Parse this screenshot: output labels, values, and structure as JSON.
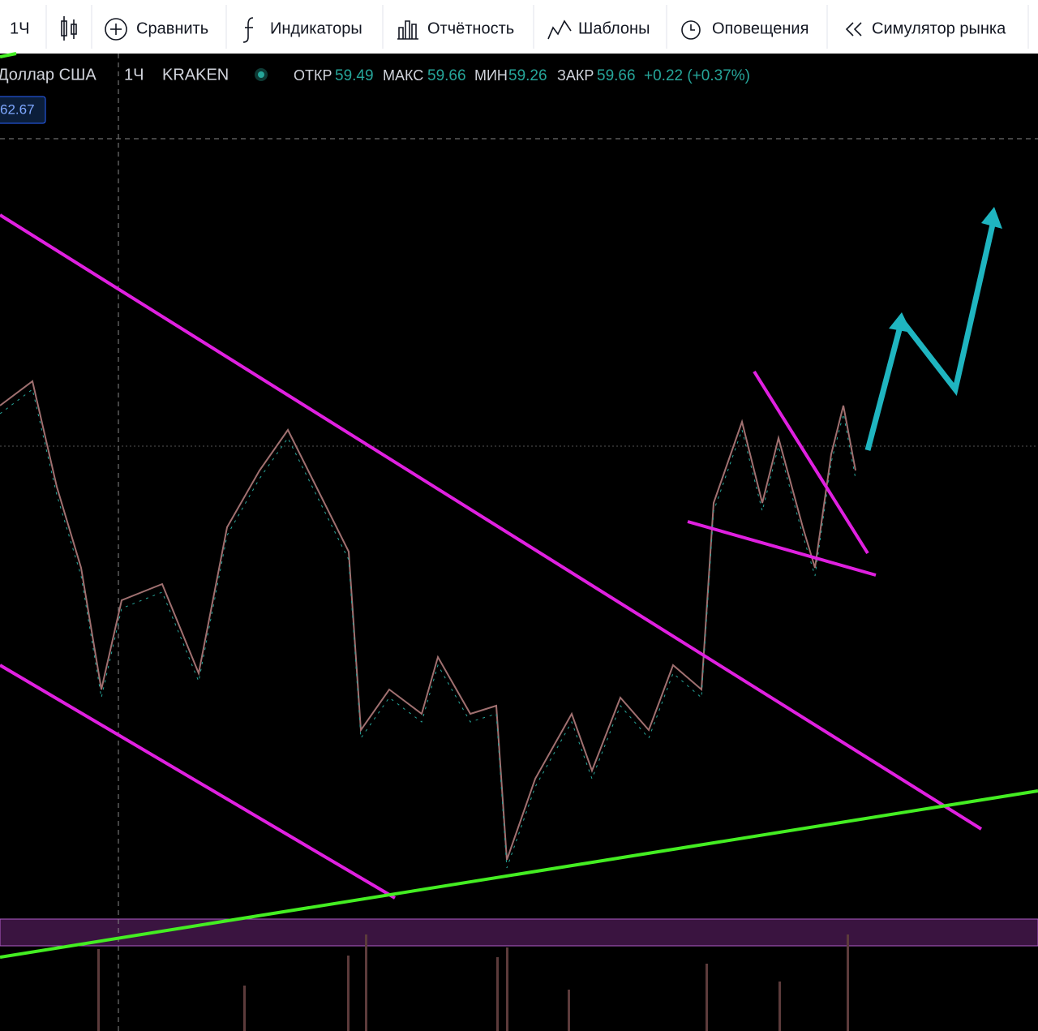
{
  "toolbar": {
    "items": [
      "1Ч",
      "Сравнить",
      "Индикаторы",
      "Отчётность",
      "Шаблоны",
      "Оповещения",
      "Симулятор рынка"
    ]
  },
  "legend": {
    "symbol": "Доллар США",
    "interval": "1Ч",
    "exchange": "KRAKEN",
    "ohlc": [
      {
        "label": "ОТКР",
        "value": "59.49"
      },
      {
        "label": "МАКС",
        "value": "59.66"
      },
      {
        "label": "МИН",
        "value": "59.26"
      },
      {
        "label": "ЗАКР",
        "value": "59.66"
      }
    ],
    "change": "+0.22 (+0.37%)"
  },
  "badge": "62.67"
}
